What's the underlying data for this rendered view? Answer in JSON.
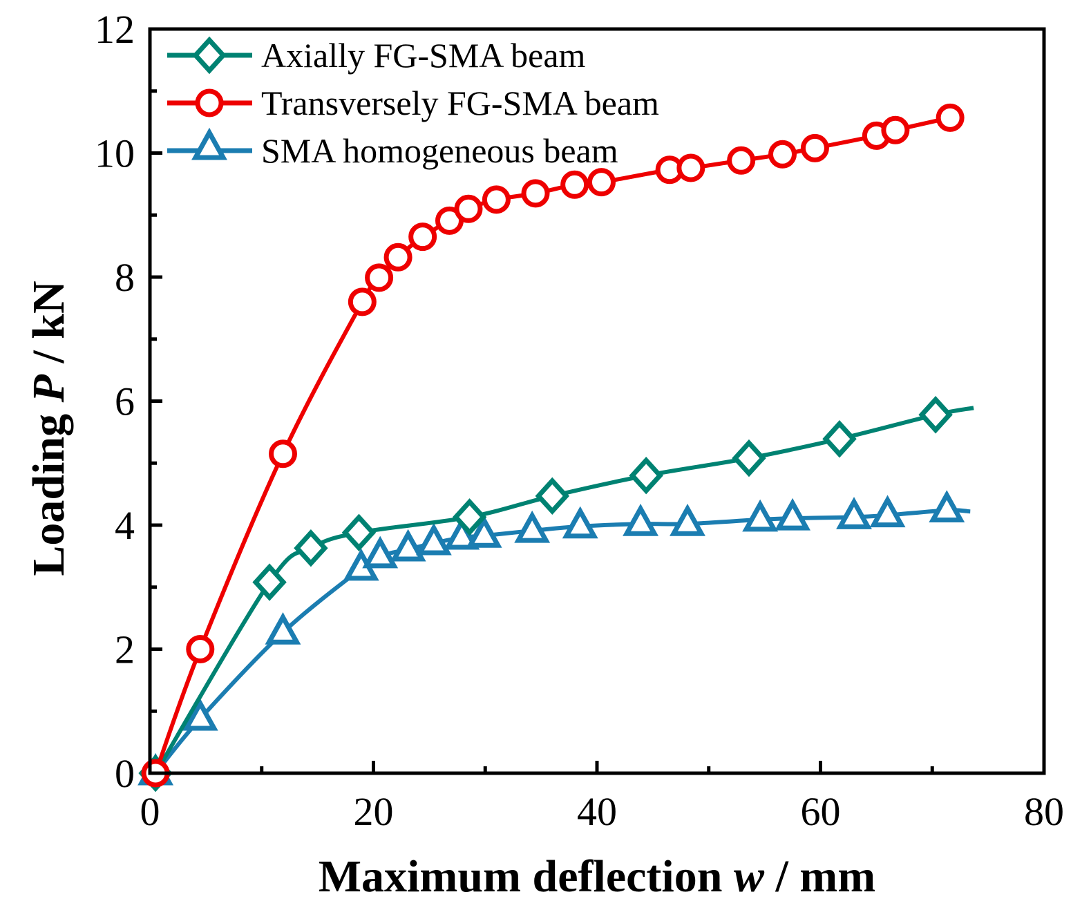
{
  "chart_data": {
    "type": "line",
    "title": "",
    "xlabel": "Maximum deflection w / mm",
    "ylabel": "Loading P / kN",
    "xlabel_parts": {
      "pre": "Maximum deflection ",
      "var": "w",
      "post": " / mm"
    },
    "ylabel_parts": {
      "pre": "Loading ",
      "var": "P",
      "post": " / kN"
    },
    "xlim": [
      0,
      80
    ],
    "ylim": [
      0,
      12
    ],
    "xticks": [
      0,
      20,
      40,
      60,
      80
    ],
    "xtick_labels": [
      "0",
      "20",
      "40",
      "60",
      "80"
    ],
    "yticks": [
      0,
      2,
      4,
      6,
      8,
      10,
      12
    ],
    "ytick_labels": [
      "0",
      "2",
      "4",
      "6",
      "8",
      "10",
      "12"
    ],
    "x_minor_step": 10,
    "y_minor_step": 1,
    "grid": false,
    "legend_position": "top-left",
    "series": [
      {
        "name": "Axially FG-SMA beam",
        "color": "#008272",
        "marker": "diamond",
        "x": [
          0.5,
          10.7,
          14.4,
          18.7,
          28.6,
          36.0,
          44.4,
          53.6,
          61.7,
          70.3
        ],
        "y": [
          0.0,
          3.08,
          3.63,
          3.88,
          4.13,
          4.47,
          4.8,
          5.08,
          5.39,
          5.78
        ],
        "line_end": [
          73.7,
          5.89
        ]
      },
      {
        "name": "Transversely FG-SMA beam",
        "color": "#EE0000",
        "marker": "circle",
        "x": [
          0.5,
          4.5,
          11.9,
          19.0,
          20.5,
          22.2,
          24.4,
          26.8,
          28.5,
          31.0,
          34.5,
          38.0,
          40.4,
          46.5,
          48.4,
          52.9,
          56.6,
          59.5,
          65.0,
          66.7,
          71.6
        ],
        "y": [
          0.0,
          2.0,
          5.15,
          7.6,
          7.99,
          8.32,
          8.65,
          8.91,
          9.1,
          9.25,
          9.35,
          9.49,
          9.53,
          9.73,
          9.76,
          9.88,
          9.98,
          10.08,
          10.28,
          10.37,
          10.57
        ],
        "line_end": null
      },
      {
        "name": "SMA homogeneous beam",
        "color": "#1B7DB1",
        "marker": "triangle",
        "x": [
          0.5,
          4.5,
          11.9,
          18.9,
          20.6,
          23.1,
          25.4,
          27.9,
          29.9,
          34.2,
          38.5,
          43.9,
          48.1,
          54.6,
          57.5,
          63.0,
          66.0,
          71.3
        ],
        "y": [
          0.0,
          0.88,
          2.27,
          3.3,
          3.5,
          3.61,
          3.71,
          3.8,
          3.83,
          3.91,
          3.98,
          4.02,
          4.02,
          4.09,
          4.11,
          4.13,
          4.16,
          4.24
        ],
        "line_end": [
          73.4,
          4.22
        ]
      }
    ]
  }
}
